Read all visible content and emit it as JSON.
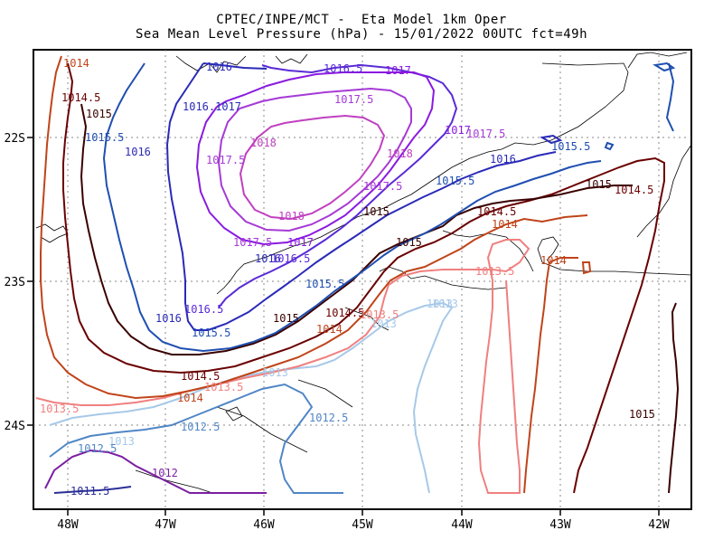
{
  "title": {
    "line1": "CPTEC/INPE/MCT -  Eta Model 1km Oper",
    "line2": "Sea Mean Level Pressure (hPa) - 15/01/2022 00UTC fct=49h"
  },
  "axes": {
    "x_ticks": [
      "48W",
      "47W",
      "46W",
      "45W",
      "44W",
      "43W",
      "42W"
    ],
    "y_ticks": [
      "22S",
      "23S",
      "24S"
    ]
  },
  "colors": {
    "p1011_5": "#2b2f98",
    "p1012": "#7b1fa2",
    "p1012_5": "#4f86c6",
    "p1013": "#a7c9e8",
    "p1013_5": "#f08080",
    "p1014": "#c0441a",
    "p1014_5": "#6a0000",
    "p1015": "#3a0000",
    "p1015_5": "#1f4fb0",
    "p1016": "#2a2ab8",
    "p1016_5": "#5a2bd6",
    "p1017": "#8a1ae0",
    "p1017_5": "#a63ad6",
    "p1018": "#c040c0"
  },
  "contour_labels": [
    {
      "text": "1014",
      "color_key": "p1014"
    },
    {
      "text": "1014.5",
      "color_key": "p1014_5"
    },
    {
      "text": "1015",
      "color_key": "p1015"
    },
    {
      "text": "1015.5",
      "color_key": "p1015_5"
    },
    {
      "text": "1016",
      "color_key": "p1016"
    },
    {
      "text": "1016.1017",
      "color_key": "p1016"
    },
    {
      "text": "1016",
      "color_key": "p1016"
    },
    {
      "text": "1016.5",
      "color_key": "p1016_5"
    },
    {
      "text": "1017",
      "color_key": "p1017"
    },
    {
      "text": "1017.5",
      "color_key": "p1017_5"
    },
    {
      "text": "1018",
      "color_key": "p1018"
    },
    {
      "text": "1017.5",
      "color_key": "p1017_5"
    },
    {
      "text": "1018",
      "color_key": "p1018"
    },
    {
      "text": "1017.5",
      "color_key": "p1017_5"
    },
    {
      "text": "1018",
      "color_key": "p1018"
    },
    {
      "text": "1017,5",
      "color_key": "p1017_5"
    },
    {
      "text": "1017",
      "color_key": "p1017"
    },
    {
      "text": "1016",
      "color_key": "p1016"
    },
    {
      "text": "1016.5",
      "color_key": "p1016_5"
    },
    {
      "text": "1017",
      "color_key": "p1017"
    },
    {
      "text": "1017.5",
      "color_key": "p1017_5"
    },
    {
      "text": "1016",
      "color_key": "p1016"
    },
    {
      "text": "1015.5",
      "color_key": "p1015_5"
    },
    {
      "text": "1015.5",
      "color_key": "p1015_5"
    },
    {
      "text": "1015",
      "color_key": "p1015"
    },
    {
      "text": "1014.5",
      "color_key": "p1014_5"
    },
    {
      "text": "1015",
      "color_key": "p1015"
    },
    {
      "text": "1014.5",
      "color_key": "p1014_5"
    },
    {
      "text": "1014",
      "color_key": "p1014"
    },
    {
      "text": "1015.5",
      "color_key": "p1015_5"
    },
    {
      "text": "1014",
      "color_key": "p1014"
    },
    {
      "text": "1013.5",
      "color_key": "p1013_5"
    },
    {
      "text": "1015",
      "color_key": "p1015"
    },
    {
      "text": "1014.5",
      "color_key": "p1014_5"
    },
    {
      "text": "1014",
      "color_key": "p1014"
    },
    {
      "text": "1013",
      "color_key": "p1013"
    },
    {
      "text": "1013",
      "color_key": "p1013"
    },
    {
      "text": "1013.5",
      "color_key": "p1013_5"
    },
    {
      "text": "1016",
      "color_key": "p1016"
    },
    {
      "text": "1016.5",
      "color_key": "p1016_5"
    },
    {
      "text": "1015.5",
      "color_key": "p1015_5"
    },
    {
      "text": "1015",
      "color_key": "p1015"
    },
    {
      "text": "1014.5",
      "color_key": "p1014_5"
    },
    {
      "text": "1014",
      "color_key": "p1014"
    },
    {
      "text": "1013.5",
      "color_key": "p1013_5"
    },
    {
      "text": "1013",
      "color_key": "p1013"
    },
    {
      "text": "1013.5",
      "color_key": "p1013_5"
    },
    {
      "text": "1012.5",
      "color_key": "p1012_5"
    },
    {
      "text": "1012.5",
      "color_key": "p1012_5"
    },
    {
      "text": "1013",
      "color_key": "p1013"
    },
    {
      "text": "1012.5",
      "color_key": "p1012_5"
    },
    {
      "text": "1012",
      "color_key": "p1012"
    },
    {
      "text": "1011.5",
      "color_key": "p1011_5"
    },
    {
      "text": "1015",
      "color_key": "p1015"
    },
    {
      "text": "1013",
      "color_key": "p1013"
    }
  ]
}
